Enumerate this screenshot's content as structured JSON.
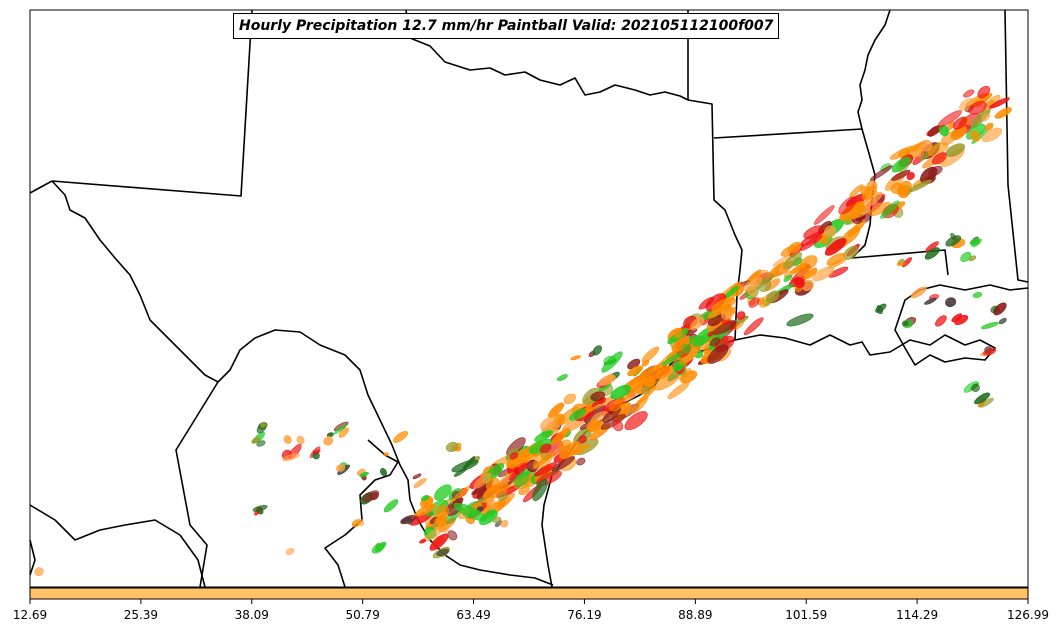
{
  "title": "Hourly Precipitation 12.7 mm/hr Paintball Valid: 202105112100f007",
  "colorbar": {
    "fill_color": "#FFC266",
    "tick_labels": [
      "12.69",
      "25.39",
      "38.09",
      "50.79",
      "63.49",
      "76.19",
      "88.89",
      "101.59",
      "114.29",
      "126.99"
    ]
  },
  "palette": {
    "orange": "#FF8C00",
    "light_orange": "#FFA040",
    "red": "#F01010",
    "dark_red": "#8B1A1A",
    "green": "#22CC22",
    "dark_green": "#1E6B1E",
    "olive": "#9A9A2A",
    "dark_gray": "#404040",
    "outline": "#000000"
  }
}
